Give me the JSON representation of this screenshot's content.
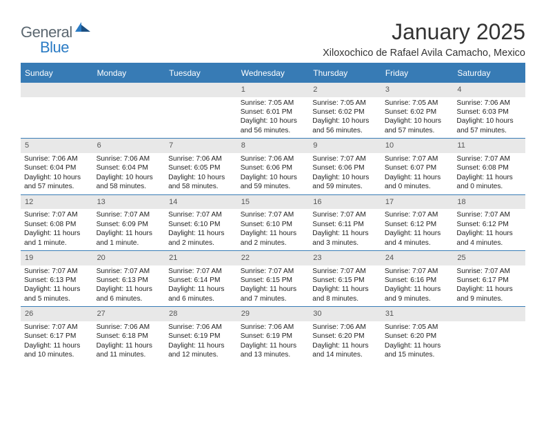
{
  "brand": {
    "name_part1": "General",
    "name_part2": "Blue"
  },
  "title": "January 2025",
  "location": "Xiloxochico de Rafael Avila Camacho, Mexico",
  "colors": {
    "header_blue": "#377bb5",
    "daynum_bg": "#e8e8e8",
    "daynum_fg": "#555555",
    "text": "#222222",
    "brand_gray": "#5b6770",
    "brand_blue": "#2a7bc4",
    "white": "#ffffff"
  },
  "day_labels": [
    "Sunday",
    "Monday",
    "Tuesday",
    "Wednesday",
    "Thursday",
    "Friday",
    "Saturday"
  ],
  "weeks": [
    [
      null,
      null,
      null,
      {
        "n": "1",
        "sr": "7:05 AM",
        "ss": "6:01 PM",
        "dl": "10 hours and 56 minutes."
      },
      {
        "n": "2",
        "sr": "7:05 AM",
        "ss": "6:02 PM",
        "dl": "10 hours and 56 minutes."
      },
      {
        "n": "3",
        "sr": "7:05 AM",
        "ss": "6:02 PM",
        "dl": "10 hours and 57 minutes."
      },
      {
        "n": "4",
        "sr": "7:06 AM",
        "ss": "6:03 PM",
        "dl": "10 hours and 57 minutes."
      }
    ],
    [
      {
        "n": "5",
        "sr": "7:06 AM",
        "ss": "6:04 PM",
        "dl": "10 hours and 57 minutes."
      },
      {
        "n": "6",
        "sr": "7:06 AM",
        "ss": "6:04 PM",
        "dl": "10 hours and 58 minutes."
      },
      {
        "n": "7",
        "sr": "7:06 AM",
        "ss": "6:05 PM",
        "dl": "10 hours and 58 minutes."
      },
      {
        "n": "8",
        "sr": "7:06 AM",
        "ss": "6:06 PM",
        "dl": "10 hours and 59 minutes."
      },
      {
        "n": "9",
        "sr": "7:07 AM",
        "ss": "6:06 PM",
        "dl": "10 hours and 59 minutes."
      },
      {
        "n": "10",
        "sr": "7:07 AM",
        "ss": "6:07 PM",
        "dl": "11 hours and 0 minutes."
      },
      {
        "n": "11",
        "sr": "7:07 AM",
        "ss": "6:08 PM",
        "dl": "11 hours and 0 minutes."
      }
    ],
    [
      {
        "n": "12",
        "sr": "7:07 AM",
        "ss": "6:08 PM",
        "dl": "11 hours and 1 minute."
      },
      {
        "n": "13",
        "sr": "7:07 AM",
        "ss": "6:09 PM",
        "dl": "11 hours and 1 minute."
      },
      {
        "n": "14",
        "sr": "7:07 AM",
        "ss": "6:10 PM",
        "dl": "11 hours and 2 minutes."
      },
      {
        "n": "15",
        "sr": "7:07 AM",
        "ss": "6:10 PM",
        "dl": "11 hours and 2 minutes."
      },
      {
        "n": "16",
        "sr": "7:07 AM",
        "ss": "6:11 PM",
        "dl": "11 hours and 3 minutes."
      },
      {
        "n": "17",
        "sr": "7:07 AM",
        "ss": "6:12 PM",
        "dl": "11 hours and 4 minutes."
      },
      {
        "n": "18",
        "sr": "7:07 AM",
        "ss": "6:12 PM",
        "dl": "11 hours and 4 minutes."
      }
    ],
    [
      {
        "n": "19",
        "sr": "7:07 AM",
        "ss": "6:13 PM",
        "dl": "11 hours and 5 minutes."
      },
      {
        "n": "20",
        "sr": "7:07 AM",
        "ss": "6:13 PM",
        "dl": "11 hours and 6 minutes."
      },
      {
        "n": "21",
        "sr": "7:07 AM",
        "ss": "6:14 PM",
        "dl": "11 hours and 6 minutes."
      },
      {
        "n": "22",
        "sr": "7:07 AM",
        "ss": "6:15 PM",
        "dl": "11 hours and 7 minutes."
      },
      {
        "n": "23",
        "sr": "7:07 AM",
        "ss": "6:15 PM",
        "dl": "11 hours and 8 minutes."
      },
      {
        "n": "24",
        "sr": "7:07 AM",
        "ss": "6:16 PM",
        "dl": "11 hours and 9 minutes."
      },
      {
        "n": "25",
        "sr": "7:07 AM",
        "ss": "6:17 PM",
        "dl": "11 hours and 9 minutes."
      }
    ],
    [
      {
        "n": "26",
        "sr": "7:07 AM",
        "ss": "6:17 PM",
        "dl": "11 hours and 10 minutes."
      },
      {
        "n": "27",
        "sr": "7:06 AM",
        "ss": "6:18 PM",
        "dl": "11 hours and 11 minutes."
      },
      {
        "n": "28",
        "sr": "7:06 AM",
        "ss": "6:19 PM",
        "dl": "11 hours and 12 minutes."
      },
      {
        "n": "29",
        "sr": "7:06 AM",
        "ss": "6:19 PM",
        "dl": "11 hours and 13 minutes."
      },
      {
        "n": "30",
        "sr": "7:06 AM",
        "ss": "6:20 PM",
        "dl": "11 hours and 14 minutes."
      },
      {
        "n": "31",
        "sr": "7:05 AM",
        "ss": "6:20 PM",
        "dl": "11 hours and 15 minutes."
      },
      null
    ]
  ],
  "labels": {
    "sunrise": "Sunrise:",
    "sunset": "Sunset:",
    "daylight": "Daylight:"
  }
}
